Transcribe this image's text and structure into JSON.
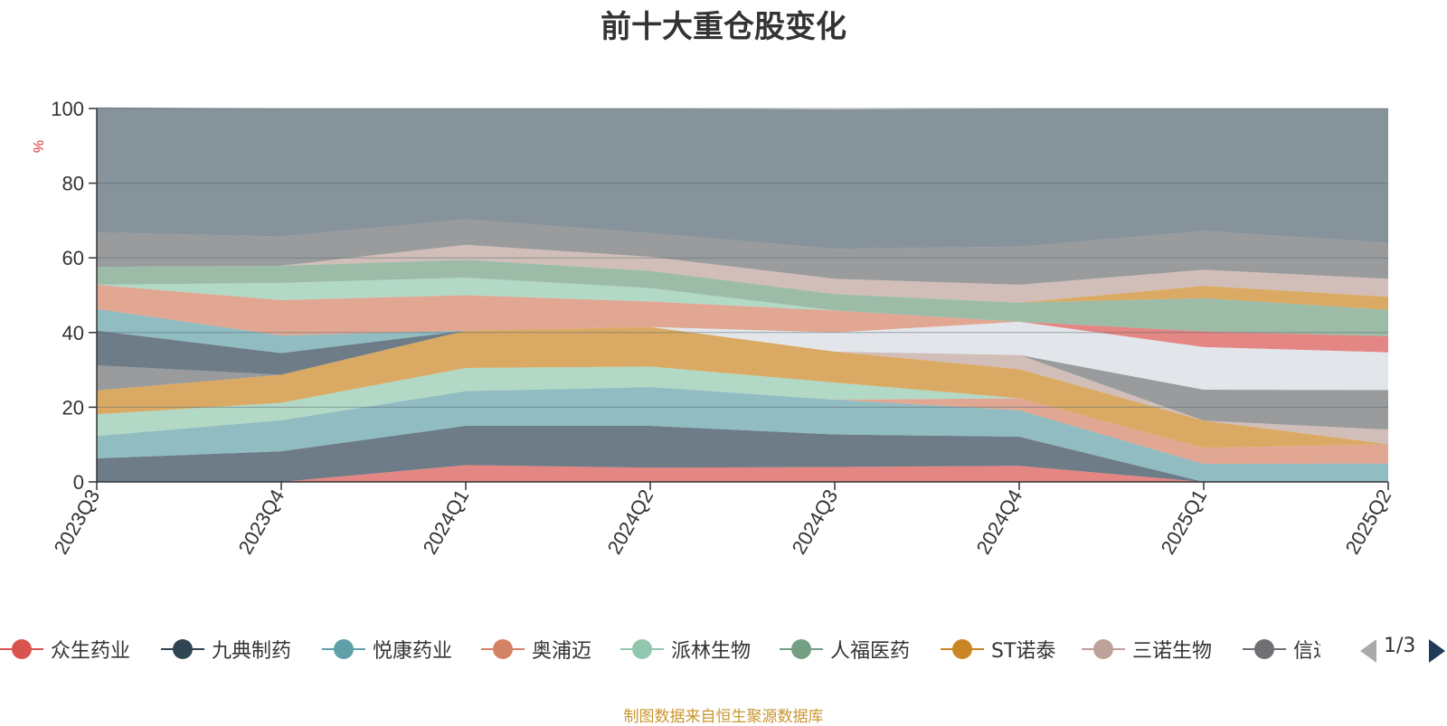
{
  "chart_data": {
    "type": "area",
    "title": "前十大重仓股变化",
    "ylabel": "%",
    "ylim": [
      0,
      100
    ],
    "yticks": [
      0,
      20,
      40,
      60,
      80,
      100
    ],
    "categories": [
      "2023Q3",
      "2023Q4",
      "2024Q1",
      "2024Q2",
      "2024Q3",
      "2024Q4",
      "2025Q1",
      "2025Q2"
    ],
    "grid": true,
    "legend_position": "bottom",
    "series": [
      {
        "name": "众生药业",
        "color": "#d9534f",
        "values": [
          0,
          0,
          4.5,
          3.8,
          4,
          4.3,
          0,
          0
        ]
      },
      {
        "name": "九典制药",
        "color": "#2f4554",
        "values": [
          6.3,
          8.2,
          10.5,
          11.2,
          8.7,
          7.8,
          0,
          0
        ]
      },
      {
        "name": "悦康药业",
        "color": "#61a0a8",
        "values": [
          6,
          8.3,
          9.3,
          10.4,
          9.3,
          7.1,
          4.8,
          4.9
        ]
      },
      {
        "name": "奥浦迈",
        "color": "#d48265",
        "values": [
          0,
          0,
          0,
          0,
          0,
          3.2,
          4.3,
          5.2
        ]
      },
      {
        "name": "派林生物",
        "color": "#91c7ae",
        "values": [
          5.8,
          4.7,
          6.2,
          5.5,
          4.6,
          0,
          0,
          0
        ]
      },
      {
        "name": "人福医药",
        "color": "#749f83",
        "values": [
          0,
          0,
          0,
          0,
          0,
          0,
          0,
          0
        ]
      },
      {
        "name": "ST诺泰",
        "color": "#ca8622",
        "values": [
          6.4,
          7.5,
          10,
          10.6,
          8.3,
          7.8,
          7.3,
          0
        ]
      },
      {
        "name": "三诺生物",
        "color": "#bda29a",
        "values": [
          0,
          0,
          0,
          0,
          0,
          3.8,
          0,
          3.9
        ]
      },
      {
        "name": "信达生物",
        "color": "#6e7074",
        "values": [
          6.7,
          0,
          0,
          0,
          0,
          0,
          8.3,
          10.6
        ]
      },
      {
        "name": "",
        "color": "#d5dce3",
        "values": [
          0,
          0,
          0,
          0,
          5.1,
          8.9,
          11.4,
          10.1
        ]
      },
      {
        "name": "",
        "color": "#d9534f",
        "values": [
          0,
          0,
          0,
          0,
          0,
          0,
          4.2,
          4.3
        ]
      },
      {
        "name": "",
        "color": "#2f4554",
        "values": [
          9.3,
          5.8,
          0,
          0,
          0,
          0,
          0,
          0
        ]
      },
      {
        "name": "",
        "color": "#61a0a8",
        "values": [
          5.8,
          4.7,
          0,
          0,
          0,
          0,
          0,
          0
        ]
      },
      {
        "name": "",
        "color": "#d48265",
        "values": [
          6.5,
          9.5,
          9.5,
          6.8,
          5.9,
          0,
          0,
          0
        ]
      },
      {
        "name": "",
        "color": "#91c7ae",
        "values": [
          0,
          4.6,
          4.7,
          3.6,
          0,
          0,
          0,
          0
        ]
      },
      {
        "name": "",
        "color": "#749f83",
        "values": [
          4.8,
          4.6,
          4.8,
          4.6,
          4.4,
          5.1,
          8.9,
          7.1
        ]
      },
      {
        "name": "",
        "color": "#ca8622",
        "values": [
          0,
          0,
          0,
          0,
          0,
          0,
          3.3,
          3.5
        ]
      },
      {
        "name": "",
        "color": "#bda29a",
        "values": [
          0,
          0,
          4,
          3.8,
          4.1,
          4.8,
          4.3,
          4.8
        ]
      },
      {
        "name": "",
        "color": "#6e7074",
        "values": [
          9.2,
          7.8,
          6.8,
          6.3,
          8,
          10.2,
          10.4,
          9.6
        ]
      },
      {
        "name": "",
        "color": "#546570",
        "values": [
          33.5,
          34.3,
          29.7,
          33.4,
          37.4,
          37,
          32.8,
          36
        ]
      }
    ]
  },
  "legend": {
    "items": [
      {
        "label": "众生药业",
        "color": "#d9534f"
      },
      {
        "label": "九典制药",
        "color": "#2f4554"
      },
      {
        "label": "悦康药业",
        "color": "#61a0a8"
      },
      {
        "label": "奥浦迈",
        "color": "#d48265"
      },
      {
        "label": "派林生物",
        "color": "#91c7ae"
      },
      {
        "label": "人福医药",
        "color": "#749f83"
      },
      {
        "label": "ST诺泰",
        "color": "#ca8622"
      },
      {
        "label": "三诺生物",
        "color": "#bda29a"
      },
      {
        "label": "信达生物",
        "color": "#6e7074"
      }
    ],
    "page_indicator": "1/3"
  },
  "source_note": "制图数据来自恒生聚源数据库"
}
